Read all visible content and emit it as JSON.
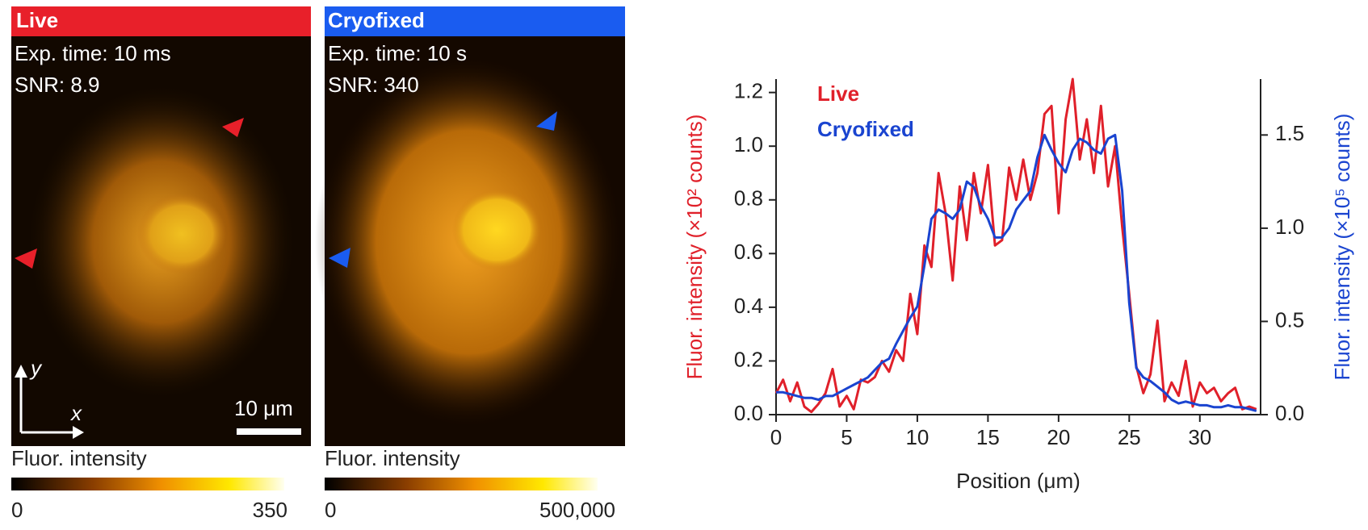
{
  "panels": [
    {
      "title": "Live",
      "exposure": "Exp. time: 10 ms",
      "snr": "SNR: 8.9",
      "scale_bar": "10 μm",
      "axis_x": "x",
      "axis_y": "y",
      "colorbar_label": "Fluor. intensity",
      "colorbar_min": "0",
      "colorbar_max": "350"
    },
    {
      "title": "Cryofixed",
      "exposure": "Exp. time: 10 s",
      "snr": "SNR: 340",
      "colorbar_label": "Fluor. intensity",
      "colorbar_min": "0",
      "colorbar_max": "500,000"
    }
  ],
  "chart_data": {
    "type": "line",
    "xlabel": "Position (μm)",
    "ylabel": "Fluor. intensity (×10² counts)",
    "y2label": "Fluor. intensity (×10⁵ counts)",
    "x": [
      0,
      0.5,
      1,
      1.5,
      2,
      2.5,
      3,
      3.5,
      4,
      4.5,
      5,
      5.5,
      6,
      6.5,
      7,
      7.5,
      8,
      8.5,
      9,
      9.5,
      10,
      10.5,
      11,
      11.5,
      12,
      12.5,
      13,
      13.5,
      14,
      14.5,
      15,
      15.5,
      16,
      16.5,
      17,
      17.5,
      18,
      18.5,
      19,
      19.5,
      20,
      20.5,
      21,
      21.5,
      22,
      22.5,
      23,
      23.5,
      24,
      24.5,
      25,
      25.5,
      26,
      26.5,
      27,
      27.5,
      28,
      28.5,
      29,
      29.5,
      30,
      30.5,
      31,
      31.5,
      32,
      32.5,
      33,
      33.5,
      34
    ],
    "series": [
      {
        "name": "Live",
        "color": "#e0202a",
        "values": [
          0.08,
          0.13,
          0.05,
          0.12,
          0.03,
          0.01,
          0.04,
          0.08,
          0.17,
          0.03,
          0.07,
          0.02,
          0.13,
          0.12,
          0.14,
          0.2,
          0.16,
          0.24,
          0.2,
          0.45,
          0.3,
          0.63,
          0.55,
          0.9,
          0.75,
          0.5,
          0.85,
          0.65,
          0.9,
          0.75,
          0.93,
          0.63,
          0.65,
          0.92,
          0.8,
          0.95,
          0.8,
          0.9,
          1.12,
          1.15,
          0.75,
          1.1,
          1.25,
          0.95,
          1.1,
          0.9,
          1.15,
          0.85,
          1.0,
          0.7,
          0.45,
          0.18,
          0.08,
          0.15,
          0.35,
          0.05,
          0.12,
          0.07,
          0.2,
          0.03,
          0.12,
          0.08,
          0.1,
          0.05,
          0.08,
          0.1,
          0.02,
          0.03,
          0.02
        ]
      },
      {
        "name": "Cryofixed",
        "color": "#1a44d0",
        "axis": "y2",
        "values": [
          0.12,
          0.12,
          0.11,
          0.1,
          0.09,
          0.09,
          0.08,
          0.1,
          0.1,
          0.12,
          0.14,
          0.16,
          0.18,
          0.2,
          0.24,
          0.28,
          0.3,
          0.38,
          0.45,
          0.52,
          0.58,
          0.8,
          1.05,
          1.1,
          1.08,
          1.05,
          1.1,
          1.25,
          1.22,
          1.12,
          1.05,
          0.95,
          0.95,
          1.0,
          1.1,
          1.15,
          1.2,
          1.38,
          1.5,
          1.42,
          1.35,
          1.3,
          1.42,
          1.48,
          1.46,
          1.42,
          1.4,
          1.48,
          1.5,
          1.2,
          0.6,
          0.25,
          0.2,
          0.18,
          0.15,
          0.12,
          0.08,
          0.06,
          0.07,
          0.06,
          0.05,
          0.05,
          0.04,
          0.04,
          0.05,
          0.04,
          0.04,
          0.03,
          0.02
        ]
      }
    ],
    "xlim": [
      0,
      34.3
    ],
    "xticks": [
      0,
      5,
      10,
      15,
      20,
      25,
      30
    ],
    "ylim": [
      0,
      1.25
    ],
    "yticks": [
      {
        "value": 0,
        "label": "0.0"
      },
      0.2,
      0.4,
      0.6,
      0.8,
      {
        "value": 1,
        "label": "1.0"
      },
      1.2
    ],
    "y2lim": [
      0,
      1.8
    ],
    "y2ticks": [
      {
        "value": 0,
        "label": "0.0"
      },
      0.5,
      {
        "value": 1,
        "label": "1.0"
      },
      1.5
    ],
    "legend": "upper left"
  }
}
